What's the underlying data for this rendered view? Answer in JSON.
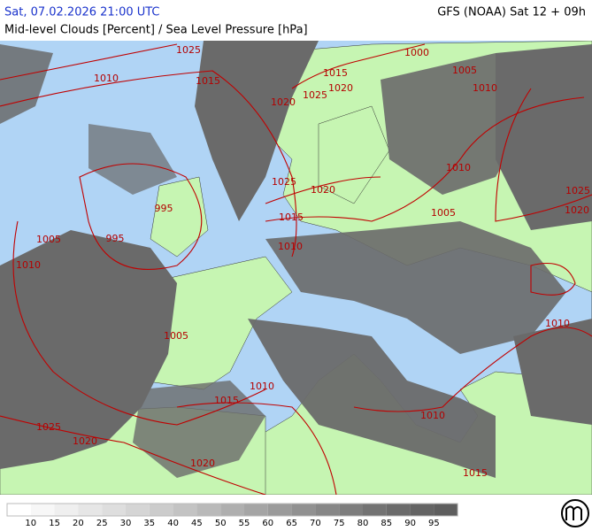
{
  "header": {
    "datetime": "Sat, 07.02.2026 21:00 UTC",
    "model": "GFS (NOAA) Sat 12 + 09h",
    "subtitle": "Mid-level Clouds [Percent] / Sea Level Pressure [hPa]"
  },
  "isobar_labels": [
    "1025",
    "1010",
    "1015",
    "1015",
    "1000",
    "1005",
    "1020",
    "1025",
    "1020",
    "1010",
    "1010",
    "1025",
    "1020",
    "1025",
    "1020",
    "1015",
    "995",
    "1005",
    "1005",
    "995",
    "1010",
    "1010",
    "1010",
    "1005",
    "1010",
    "1015",
    "1010",
    "1025",
    "1020",
    "1020",
    "1015"
  ],
  "legend": {
    "ticks": [
      10,
      15,
      20,
      25,
      30,
      35,
      40,
      45,
      50,
      55,
      60,
      65,
      70,
      75,
      80,
      85,
      90,
      95
    ],
    "colors": [
      "#ffffff",
      "#f7f7f7",
      "#efefef",
      "#e6e6e6",
      "#dedede",
      "#d5d5d5",
      "#cccccc",
      "#c3c3c3",
      "#b9b9b9",
      "#afafaf",
      "#a5a5a5",
      "#9b9b9b",
      "#919191",
      "#878787",
      "#7d7d7d",
      "#737373",
      "#6b6b6b",
      "#646464",
      "#5e5e5e"
    ]
  }
}
